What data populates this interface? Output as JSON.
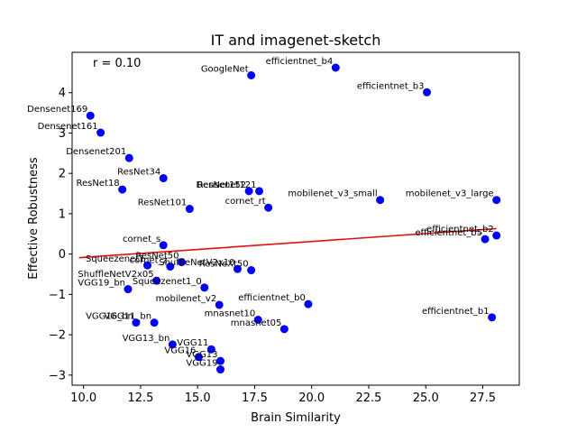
{
  "chart_data": {
    "type": "scatter",
    "title": "IT and imagenet-sketch",
    "xlabel": "Brain Similarity",
    "ylabel": "Effective Robustness",
    "annotation": "r = 0.10",
    "xlim": [
      9.5,
      29.1
    ],
    "ylim": [
      -3.25,
      5.0
    ],
    "xticks": [
      10.0,
      12.5,
      15.0,
      17.5,
      20.0,
      22.5,
      25.0,
      27.5
    ],
    "xtick_labels": [
      "10.0",
      "12.5",
      "15.0",
      "17.5",
      "20.0",
      "22.5",
      "25.0",
      "27.5"
    ],
    "yticks": [
      -3,
      -2,
      -1,
      0,
      1,
      2,
      3,
      4
    ],
    "ytick_labels": [
      "−3",
      "−2",
      "−1",
      "0",
      "1",
      "2",
      "3",
      "4"
    ],
    "point_color": "#0000ff",
    "fit_color": "#e01010",
    "grid": false,
    "fit_line": {
      "x": [
        9.8,
        28.1
      ],
      "y": [
        -0.09,
        0.63
      ]
    },
    "points": [
      {
        "label": "efficientnet_b4",
        "x": 21.05,
        "y": 4.62
      },
      {
        "label": "GoogleNet",
        "x": 17.35,
        "y": 4.43
      },
      {
        "label": "efficientnet_b3",
        "x": 25.05,
        "y": 4.01
      },
      {
        "label": "Densenet169",
        "x": 10.3,
        "y": 3.43
      },
      {
        "label": "Densenet161",
        "x": 10.75,
        "y": 3.01
      },
      {
        "label": "Densenet201",
        "x": 12.0,
        "y": 2.38
      },
      {
        "label": "ResNet34",
        "x": 13.5,
        "y": 1.88
      },
      {
        "label": "ResNet18",
        "x": 11.7,
        "y": 1.6
      },
      {
        "label": "ResNet152",
        "x": 17.25,
        "y": 1.56
      },
      {
        "label": "Densenet121",
        "x": 17.7,
        "y": 1.56
      },
      {
        "label": "cornet_rt",
        "x": 18.1,
        "y": 1.15
      },
      {
        "label": "ResNet101",
        "x": 14.65,
        "y": 1.12
      },
      {
        "label": "mobilenet_v3_small",
        "x": 23.0,
        "y": 1.34
      },
      {
        "label": "mobilenet_v3_large",
        "x": 28.1,
        "y": 1.34
      },
      {
        "label": "efficientnet_b2",
        "x": 28.1,
        "y": 0.46
      },
      {
        "label": "efficientnet_b5",
        "x": 27.6,
        "y": 0.37
      },
      {
        "label": "cornet_s",
        "x": 13.5,
        "y": 0.22
      },
      {
        "label": "Squeezenet1",
        "x": 12.8,
        "y": -0.28
      },
      {
        "label": "cornet_z",
        "x": 13.8,
        "y": -0.31
      },
      {
        "label": "ResNet50",
        "x": 14.3,
        "y": -0.2
      },
      {
        "label": "ShuffleNetV2x10",
        "x": 16.75,
        "y": -0.37
      },
      {
        "label": "ResNeXt50",
        "x": 17.35,
        "y": -0.4
      },
      {
        "label": "ShuffleNetV2x05",
        "x": 13.2,
        "y": -0.66
      },
      {
        "label": "Squeezenet1_0",
        "x": 15.3,
        "y": -0.83
      },
      {
        "label": "VGG19_bn",
        "x": 11.95,
        "y": -0.87
      },
      {
        "label": "mobilenet_v2",
        "x": 15.95,
        "y": -1.26
      },
      {
        "label": "efficientnet_b0",
        "x": 19.85,
        "y": -1.24
      },
      {
        "label": "mnasnet10",
        "x": 17.65,
        "y": -1.63
      },
      {
        "label": "mnasnet05",
        "x": 18.8,
        "y": -1.86
      },
      {
        "label": "efficientnet_b1",
        "x": 27.9,
        "y": -1.57
      },
      {
        "label": "VGG16_bn",
        "x": 12.3,
        "y": -1.7
      },
      {
        "label": "VGG11_bn",
        "x": 13.1,
        "y": -1.7
      },
      {
        "label": "VGG13_bn",
        "x": 13.9,
        "y": -2.24
      },
      {
        "label": "VGG11",
        "x": 15.6,
        "y": -2.36
      },
      {
        "label": "VGG16",
        "x": 15.05,
        "y": -2.55
      },
      {
        "label": "VGG13",
        "x": 16.0,
        "y": -2.65
      },
      {
        "label": "VGG19",
        "x": 16.0,
        "y": -2.86
      }
    ]
  }
}
